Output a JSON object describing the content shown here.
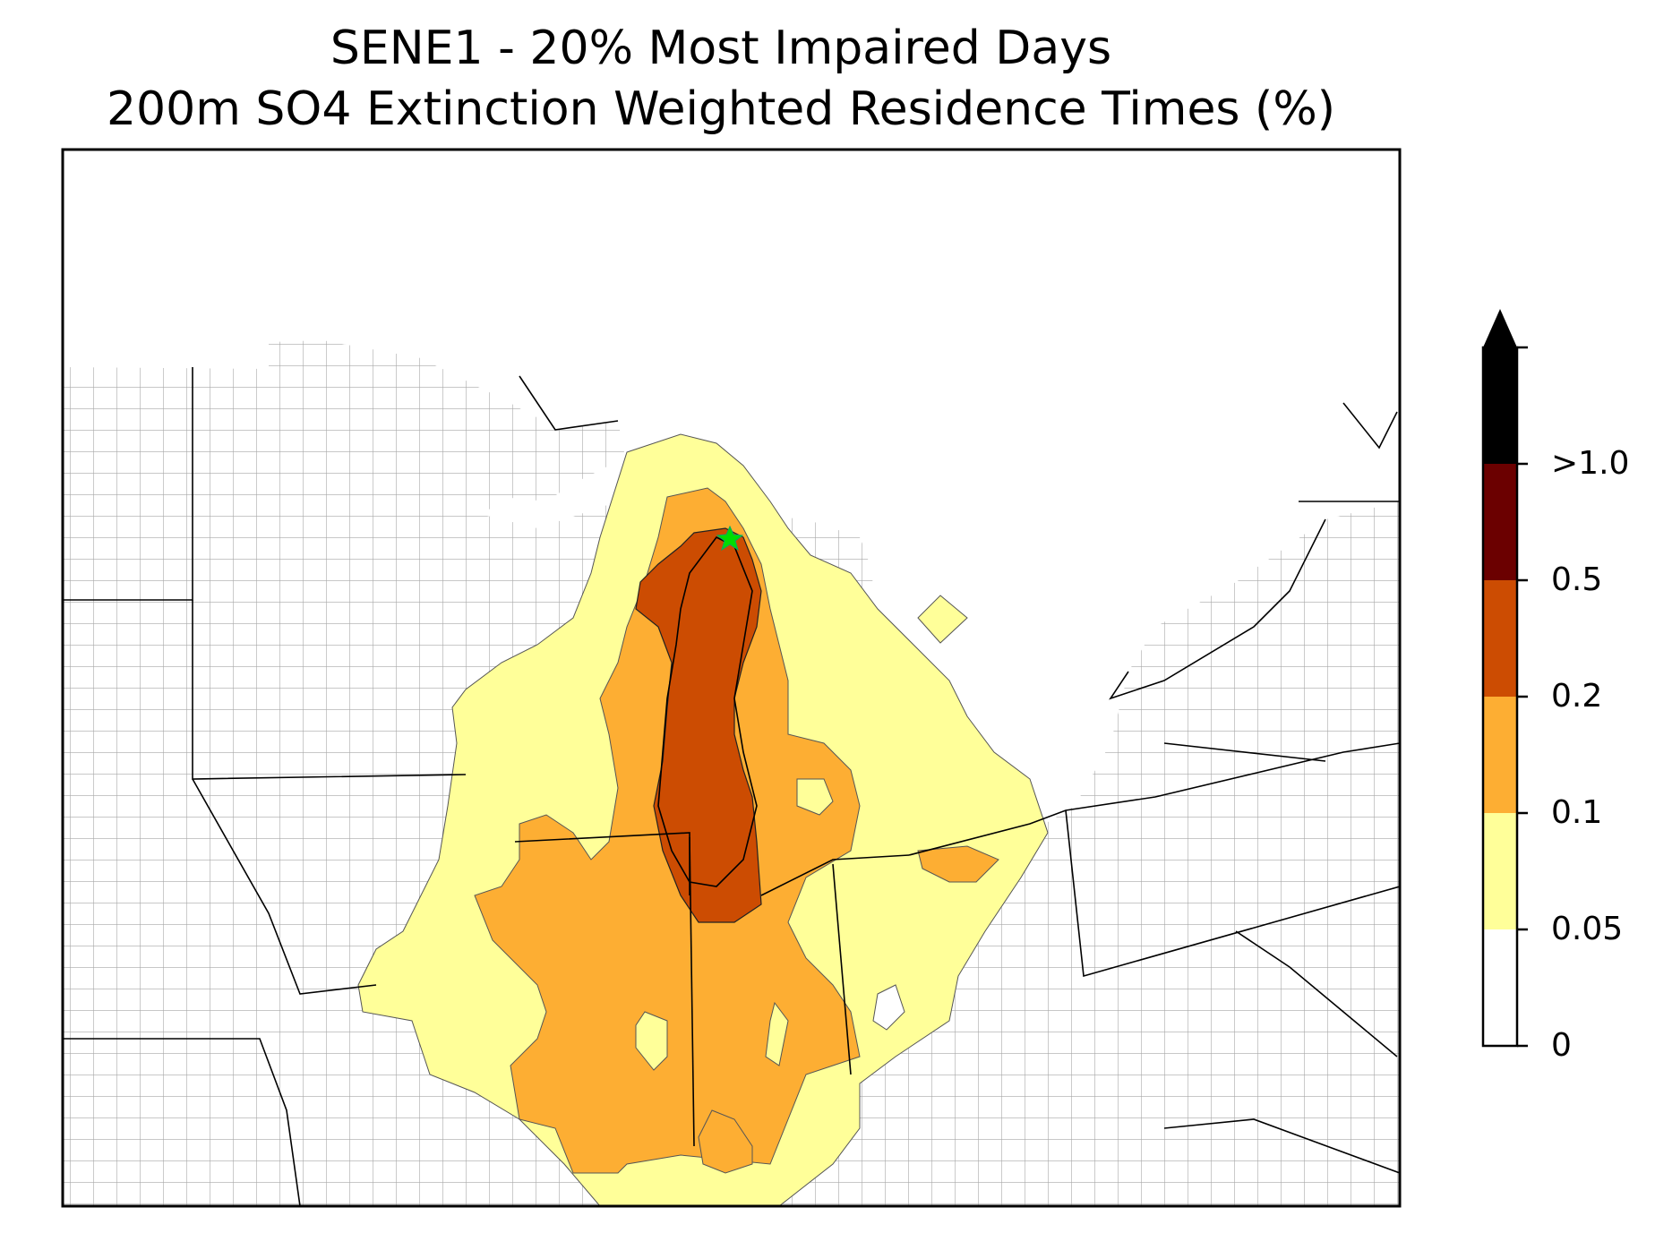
{
  "title": {
    "line1": "SENE1 - 20% Most Impaired Days",
    "line2": "200m SO4 Extinction Weighted Residence Times (%)"
  },
  "colorbar": {
    "extend": "max",
    "bins": [
      {
        "lower": "0",
        "color": "#ffffff"
      },
      {
        "lower": "0.05",
        "color": "#ffff99"
      },
      {
        "lower": "0.1",
        "color": "#fdae33"
      },
      {
        "lower": "0.2",
        "color": "#cc4c02"
      },
      {
        "lower": "0.5",
        "color": "#6b0000"
      },
      {
        "lower": ">1.0",
        "color": "#000000"
      }
    ]
  },
  "map": {
    "region": "Great Lakes / Midwest United States",
    "boundaries": [
      "state",
      "county"
    ],
    "receptor_marker": {
      "symbol": "star",
      "color": "#00dd00",
      "site": "SENE1"
    },
    "colors": {
      "county_line": "#a0a0a0",
      "state_line": "#000000",
      "background": "#ffffff"
    }
  }
}
